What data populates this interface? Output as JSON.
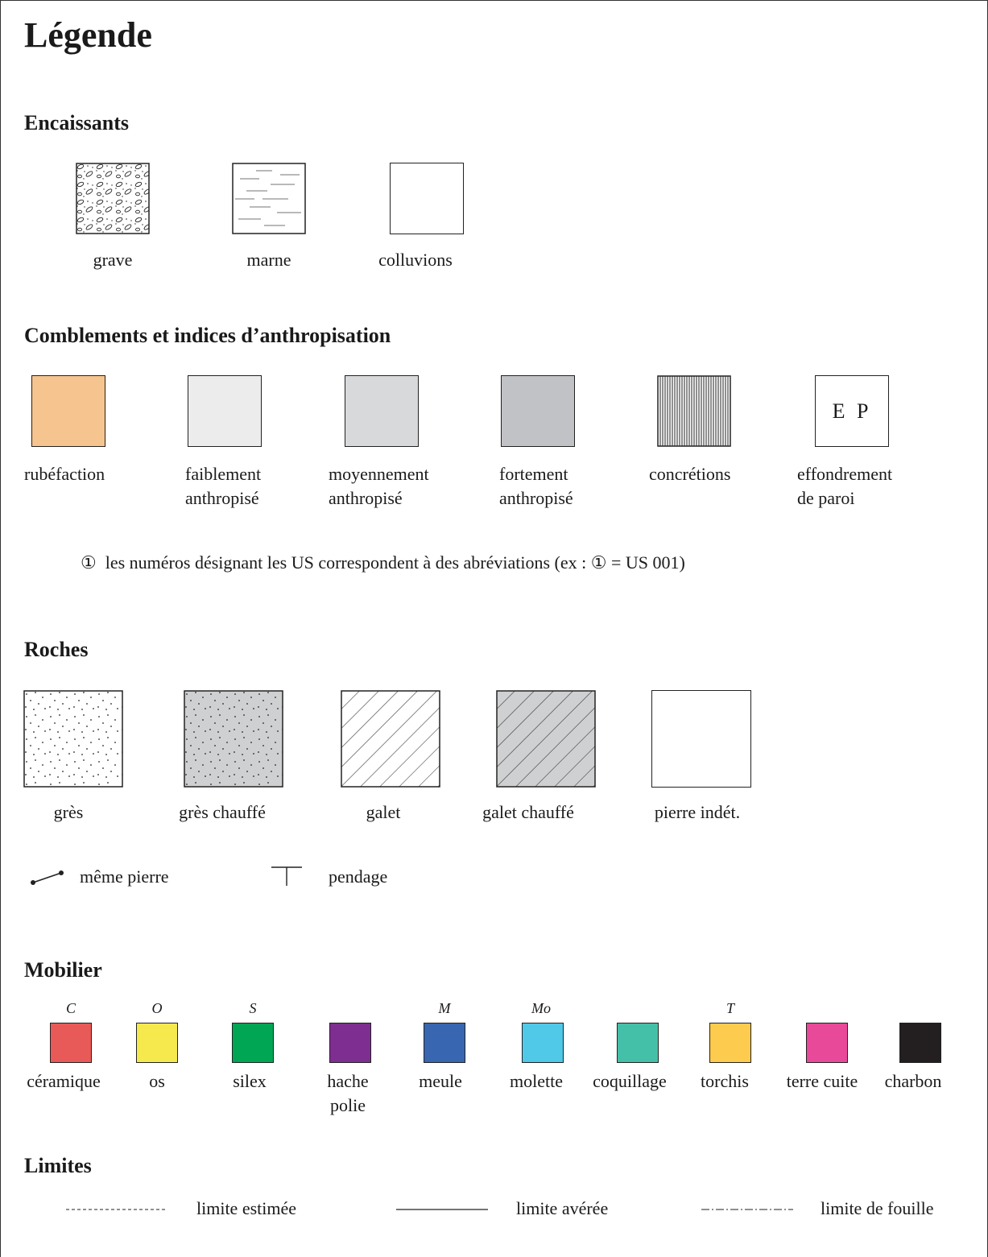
{
  "title": "Légende",
  "colors": {
    "rubefaction": "#f5c48f",
    "faiblement": "#ececec",
    "moyennement": "#d8d9db",
    "fortement": "#c1c2c5",
    "gres_chauffe": "#cfd0d2",
    "galet_chauffe": "#cfd0d2",
    "ceramique": "#e85a57",
    "os": "#f5e94e",
    "silex": "#00a654",
    "hache_polie": "#7e2e90",
    "meule": "#3866b0",
    "molette": "#50c8e8",
    "coquillage": "#45c0a8",
    "torchis": "#fdcb4e",
    "terre_cuite": "#e84998",
    "charbon": "#231f20"
  },
  "encaissants": {
    "heading": "Encaissants",
    "items": [
      {
        "label": "grave",
        "pattern": "gravel"
      },
      {
        "label": "marne",
        "pattern": "dashes"
      },
      {
        "label": "colluvions",
        "pattern": "blank"
      }
    ]
  },
  "comblements": {
    "heading": "Comblements et indices d’anthropisation",
    "items": [
      {
        "line1": "rubéfaction",
        "line2": ""
      },
      {
        "line1": "faiblement",
        "line2": "anthropisé"
      },
      {
        "line1": "moyennement",
        "line2": "anthropisé"
      },
      {
        "line1": "fortement",
        "line2": "anthropisé"
      },
      {
        "line1": "concrétions",
        "line2": ""
      },
      {
        "line1": "effondrement",
        "line2": "de paroi"
      }
    ],
    "ep_text": "E P",
    "note_symbol": "①",
    "note_text_a": "les numéros désignant les US correspondent à des abréviations (ex : ",
    "note_symbol_2": "①",
    "note_text_b": " = US 001)"
  },
  "roches": {
    "heading": "Roches",
    "items": [
      {
        "label": "grès"
      },
      {
        "label": "grès chauffé"
      },
      {
        "label": "galet"
      },
      {
        "label": "galet chauffé"
      },
      {
        "label": "pierre indét."
      }
    ],
    "same_stone": "même pierre",
    "pendage": "pendage"
  },
  "mobilier": {
    "heading": "Mobilier",
    "items": [
      {
        "abbr": "C",
        "line1": "céramique",
        "line2": ""
      },
      {
        "abbr": "O",
        "line1": "os",
        "line2": ""
      },
      {
        "abbr": "S",
        "line1": "silex",
        "line2": ""
      },
      {
        "abbr": "",
        "line1": "hache",
        "line2": "polie"
      },
      {
        "abbr": "M",
        "line1": "meule",
        "line2": ""
      },
      {
        "abbr": "Mo",
        "line1": "molette",
        "line2": ""
      },
      {
        "abbr": "",
        "line1": "coquillage",
        "line2": ""
      },
      {
        "abbr": "T",
        "line1": "torchis",
        "line2": ""
      },
      {
        "abbr": "",
        "line1": "terre cuite",
        "line2": ""
      },
      {
        "abbr": "",
        "line1": "charbon",
        "line2": ""
      }
    ]
  },
  "limites": {
    "heading": "Limites",
    "items": [
      {
        "label": "limite estimée",
        "style": "dashed"
      },
      {
        "label": "limite avérée",
        "style": "solid"
      },
      {
        "label": "limite de fouille",
        "style": "dash-dot"
      }
    ]
  }
}
